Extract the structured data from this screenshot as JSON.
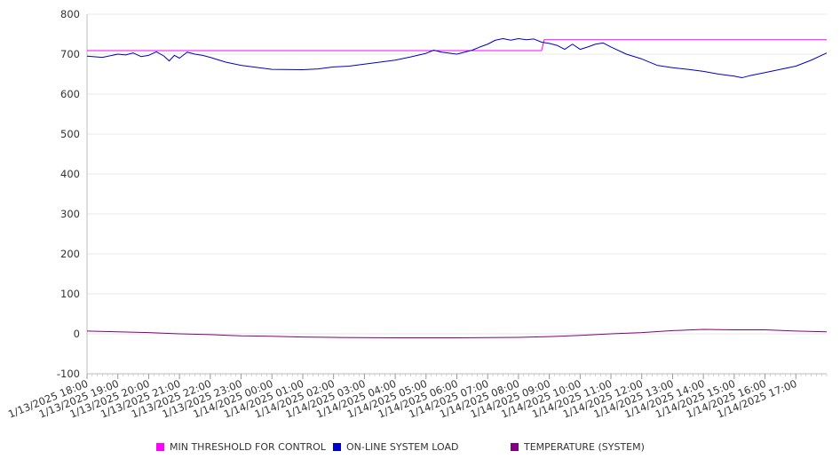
{
  "chart_data": {
    "type": "line",
    "title": "",
    "xlabel": "",
    "ylabel": "",
    "ylim": [
      -100,
      800
    ],
    "y_ticks": [
      800,
      700,
      600,
      500,
      400,
      300,
      200,
      100,
      0,
      -100
    ],
    "y_tick_labels": [
      "800",
      "700",
      "600",
      "500",
      "400",
      "300",
      "200",
      "100",
      "0",
      "-100"
    ],
    "x_tick_labels": [
      "1/13/2025 18:00",
      "1/13/2025 19:00",
      "1/13/2025 20:00",
      "1/13/2025 21:00",
      "1/13/2025 22:00",
      "1/13/2025 23:00",
      "1/14/2025 00:00",
      "1/14/2025 01:00",
      "1/14/2025 02:00",
      "1/14/2025 03:00",
      "1/14/2025 04:00",
      "1/14/2025 05:00",
      "1/14/2025 06:00",
      "1/14/2025 07:00",
      "1/14/2025 08:00",
      "1/14/2025 09:00",
      "1/14/2025 10:00",
      "1/14/2025 11:00",
      "1/14/2025 12:00",
      "1/14/2025 13:00",
      "1/14/2025 14:00",
      "1/14/2025 15:00",
      "1/14/2025 16:00",
      "1/14/2025 17:00"
    ],
    "x_range": [
      "1/13/2025 18:00",
      "1/14/2025 18:00"
    ],
    "grid": "horizontal",
    "legend_position": "bottom",
    "series": [
      {
        "name": "MIN THRESHOLD FOR CONTROL",
        "color": "#ff00ff",
        "points": [
          [
            "1/13/2025 18:00",
            709
          ],
          [
            "1/14/2025 08:45",
            709
          ],
          [
            "1/14/2025 08:50",
            736
          ],
          [
            "1/14/2025 18:00",
            736
          ]
        ]
      },
      {
        "name": "ON-LINE SYSTEM LOAD",
        "color": "#0000cc",
        "points": [
          [
            "1/13/2025 18:00",
            695
          ],
          [
            "1/13/2025 18:30",
            692
          ],
          [
            "1/13/2025 19:00",
            700
          ],
          [
            "1/13/2025 19:15",
            698
          ],
          [
            "1/13/2025 19:30",
            703
          ],
          [
            "1/13/2025 19:45",
            694
          ],
          [
            "1/13/2025 20:00",
            697
          ],
          [
            "1/13/2025 20:15",
            706
          ],
          [
            "1/13/2025 20:30",
            695
          ],
          [
            "1/13/2025 20:40",
            683
          ],
          [
            "1/13/2025 20:50",
            697
          ],
          [
            "1/13/2025 21:00",
            690
          ],
          [
            "1/13/2025 21:15",
            705
          ],
          [
            "1/13/2025 21:30",
            700
          ],
          [
            "1/13/2025 21:45",
            697
          ],
          [
            "1/13/2025 22:00",
            692
          ],
          [
            "1/13/2025 22:30",
            680
          ],
          [
            "1/13/2025 23:00",
            672
          ],
          [
            "1/14/2025 00:00",
            662
          ],
          [
            "1/14/2025 01:00",
            661
          ],
          [
            "1/14/2025 01:30",
            663
          ],
          [
            "1/14/2025 02:00",
            668
          ],
          [
            "1/14/2025 02:30",
            670
          ],
          [
            "1/14/2025 03:00",
            675
          ],
          [
            "1/14/2025 04:00",
            685
          ],
          [
            "1/14/2025 04:30",
            693
          ],
          [
            "1/14/2025 05:00",
            702
          ],
          [
            "1/14/2025 05:15",
            710
          ],
          [
            "1/14/2025 05:30",
            705
          ],
          [
            "1/14/2025 06:00",
            700
          ],
          [
            "1/14/2025 06:15",
            705
          ],
          [
            "1/14/2025 06:30",
            710
          ],
          [
            "1/14/2025 06:45",
            718
          ],
          [
            "1/14/2025 07:00",
            725
          ],
          [
            "1/14/2025 07:15",
            735
          ],
          [
            "1/14/2025 07:30",
            739
          ],
          [
            "1/14/2025 07:45",
            735
          ],
          [
            "1/14/2025 08:00",
            739
          ],
          [
            "1/14/2025 08:15",
            736
          ],
          [
            "1/14/2025 08:30",
            738
          ],
          [
            "1/14/2025 08:45",
            730
          ],
          [
            "1/14/2025 09:00",
            727
          ],
          [
            "1/14/2025 09:15",
            722
          ],
          [
            "1/14/2025 09:30",
            712
          ],
          [
            "1/14/2025 09:45",
            725
          ],
          [
            "1/14/2025 10:00",
            712
          ],
          [
            "1/14/2025 10:15",
            718
          ],
          [
            "1/14/2025 10:30",
            725
          ],
          [
            "1/14/2025 10:45",
            728
          ],
          [
            "1/14/2025 11:00",
            718
          ],
          [
            "1/14/2025 11:30",
            700
          ],
          [
            "1/14/2025 12:00",
            688
          ],
          [
            "1/14/2025 12:30",
            672
          ],
          [
            "1/14/2025 13:00",
            666
          ],
          [
            "1/14/2025 13:30",
            662
          ],
          [
            "1/14/2025 14:00",
            657
          ],
          [
            "1/14/2025 14:30",
            650
          ],
          [
            "1/14/2025 15:00",
            645
          ],
          [
            "1/14/2025 15:15",
            641
          ],
          [
            "1/14/2025 15:30",
            646
          ],
          [
            "1/14/2025 16:00",
            654
          ],
          [
            "1/14/2025 16:30",
            662
          ],
          [
            "1/14/2025 17:00",
            670
          ],
          [
            "1/14/2025 17:30",
            685
          ],
          [
            "1/14/2025 18:00",
            703
          ]
        ]
      },
      {
        "name": "TEMPERATURE (SYSTEM)",
        "color": "#800080",
        "points": [
          [
            "1/13/2025 18:00",
            7
          ],
          [
            "1/13/2025 19:00",
            5
          ],
          [
            "1/13/2025 20:00",
            3
          ],
          [
            "1/13/2025 21:00",
            0
          ],
          [
            "1/13/2025 22:00",
            -2
          ],
          [
            "1/13/2025 23:00",
            -5
          ],
          [
            "1/14/2025 00:00",
            -6
          ],
          [
            "1/14/2025 01:00",
            -8
          ],
          [
            "1/14/2025 02:00",
            -9
          ],
          [
            "1/14/2025 04:00",
            -10
          ],
          [
            "1/14/2025 06:00",
            -10
          ],
          [
            "1/14/2025 08:00",
            -9
          ],
          [
            "1/14/2025 09:00",
            -7
          ],
          [
            "1/14/2025 10:00",
            -4
          ],
          [
            "1/14/2025 11:00",
            0
          ],
          [
            "1/14/2025 12:00",
            3
          ],
          [
            "1/14/2025 13:00",
            8
          ],
          [
            "1/14/2025 14:00",
            11
          ],
          [
            "1/14/2025 15:00",
            10
          ],
          [
            "1/14/2025 16:00",
            10
          ],
          [
            "1/14/2025 17:00",
            7
          ],
          [
            "1/14/2025 18:00",
            5
          ]
        ]
      }
    ]
  },
  "legend": {
    "items": [
      {
        "label": "MIN THRESHOLD FOR CONTROL",
        "color": "#ff00ff"
      },
      {
        "label": "ON-LINE SYSTEM LOAD",
        "color": "#0000cc"
      },
      {
        "label": "TEMPERATURE (SYSTEM)",
        "color": "#800080"
      }
    ]
  }
}
